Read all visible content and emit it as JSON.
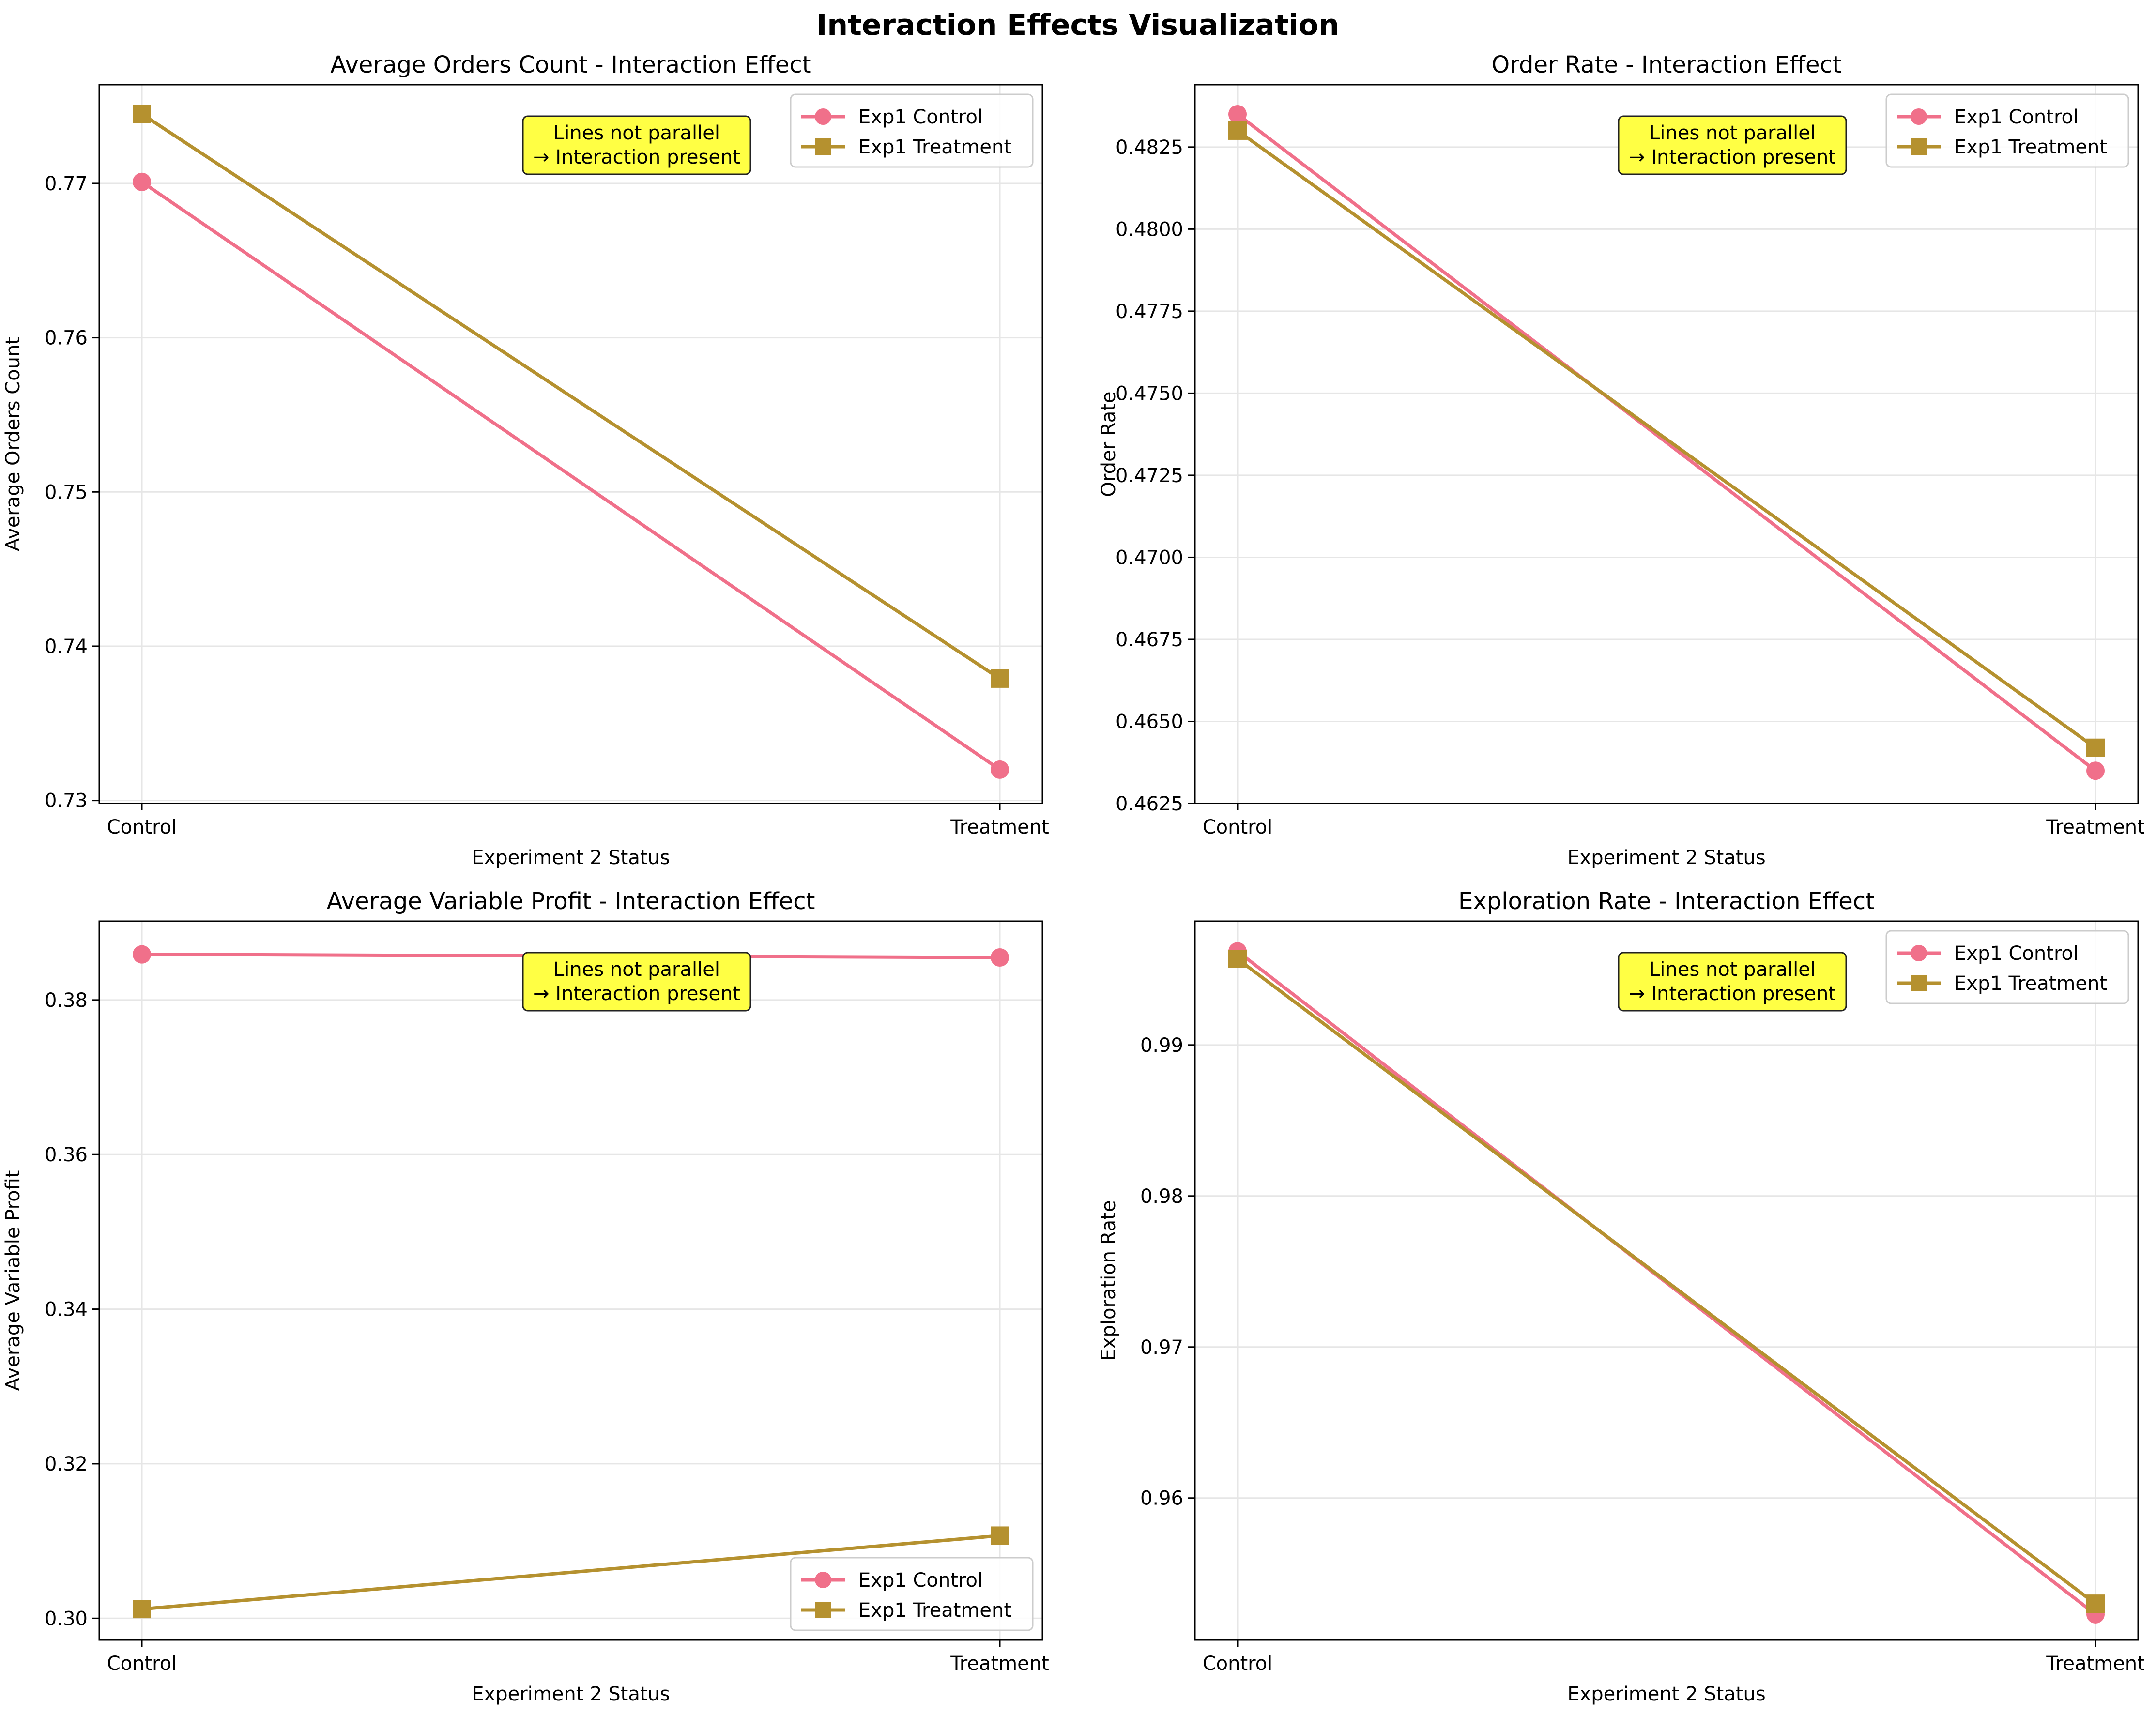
{
  "figure_title": "Interaction Effects Visualization",
  "colors": {
    "control": "#f0708a",
    "treatment": "#b5912f",
    "annotation_bg": "#ffff44",
    "grid": "#e6e6e6"
  },
  "chart_data": [
    {
      "type": "line",
      "title": "Average Orders Count - Interaction Effect",
      "xlabel": "Experiment 2 Status",
      "ylabel": "Average Orders Count",
      "categories": [
        "Control",
        "Treatment"
      ],
      "ylim": [
        0.7298,
        0.7764
      ],
      "yticks": [
        0.73,
        0.74,
        0.75,
        0.76,
        0.77
      ],
      "ytick_labels": [
        "0.73",
        "0.74",
        "0.75",
        "0.76",
        "0.77"
      ],
      "series": [
        {
          "name": "Exp1 Control",
          "marker": "circle",
          "values": [
            0.7701,
            0.732
          ]
        },
        {
          "name": "Exp1 Treatment",
          "marker": "square",
          "values": [
            0.7745,
            0.7379
          ]
        }
      ],
      "annotation": [
        "Lines not parallel",
        "→ Interaction present"
      ],
      "legend": "top-right",
      "grid": true
    },
    {
      "type": "line",
      "title": "Order Rate - Interaction Effect",
      "xlabel": "Experiment 2 Status",
      "ylabel": "Order Rate",
      "categories": [
        "Control",
        "Treatment"
      ],
      "ylim": [
        0.4625,
        0.4844
      ],
      "yticks": [
        0.4625,
        0.465,
        0.4675,
        0.47,
        0.4725,
        0.475,
        0.4775,
        0.48,
        0.4825
      ],
      "ytick_labels": [
        "0.4625",
        "0.4650",
        "0.4675",
        "0.4700",
        "0.4725",
        "0.4750",
        "0.4775",
        "0.4800",
        "0.4825"
      ],
      "series": [
        {
          "name": "Exp1 Control",
          "marker": "circle",
          "values": [
            0.4835,
            0.4635
          ]
        },
        {
          "name": "Exp1 Treatment",
          "marker": "square",
          "values": [
            0.483,
            0.4642
          ]
        }
      ],
      "annotation": [
        "Lines not parallel",
        "→ Interaction present"
      ],
      "legend": "top-right",
      "grid": true
    },
    {
      "type": "line",
      "title": "Average Variable Profit - Interaction Effect",
      "xlabel": "Experiment 2 Status",
      "ylabel": "Average Variable Profit",
      "categories": [
        "Control",
        "Treatment"
      ],
      "ylim": [
        0.2972,
        0.3902
      ],
      "yticks": [
        0.3,
        0.32,
        0.34,
        0.36,
        0.38
      ],
      "ytick_labels": [
        "0.30",
        "0.32",
        "0.34",
        "0.36",
        "0.38"
      ],
      "series": [
        {
          "name": "Exp1 Control",
          "marker": "circle",
          "values": [
            0.3859,
            0.3855
          ]
        },
        {
          "name": "Exp1 Treatment",
          "marker": "square",
          "values": [
            0.3012,
            0.3107
          ]
        }
      ],
      "annotation": [
        "Lines not parallel",
        "→ Interaction present"
      ],
      "legend": "bottom-right",
      "grid": true
    },
    {
      "type": "line",
      "title": "Exploration Rate - Interaction Effect",
      "xlabel": "Experiment 2 Status",
      "ylabel": "Exploration Rate",
      "categories": [
        "Control",
        "Treatment"
      ],
      "ylim": [
        0.9506,
        0.9982
      ],
      "yticks": [
        0.96,
        0.97,
        0.98,
        0.99
      ],
      "ytick_labels": [
        "0.96",
        "0.97",
        "0.98",
        "0.99"
      ],
      "series": [
        {
          "name": "Exp1 Control",
          "marker": "circle",
          "values": [
            0.9962,
            0.9523
          ]
        },
        {
          "name": "Exp1 Treatment",
          "marker": "square",
          "values": [
            0.9957,
            0.953
          ]
        }
      ],
      "annotation": [
        "Lines not parallel",
        "→ Interaction present"
      ],
      "legend": "top-right",
      "grid": true
    }
  ]
}
